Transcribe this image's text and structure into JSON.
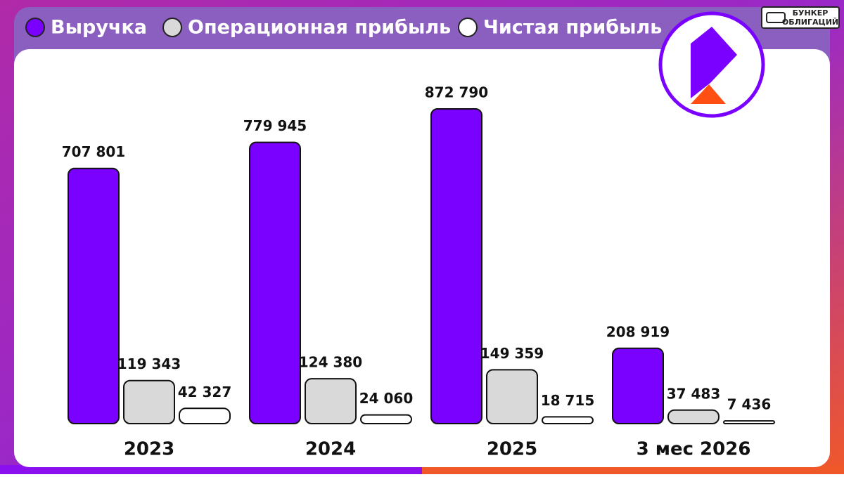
{
  "chart_data": {
    "type": "bar",
    "categories": [
      "2023",
      "2024",
      "2025",
      "3 мес 2026"
    ],
    "series": [
      {
        "name": "Выручка",
        "color": "#7a00ff",
        "values": [
          707801,
          779945,
          872790,
          208919
        ],
        "value_labels": [
          "707 801",
          "779 945",
          "872 790",
          "208 919"
        ]
      },
      {
        "name": "Операционная прибыль",
        "color": "#d9d9d9",
        "values": [
          119343,
          124380,
          149359,
          37483
        ],
        "value_labels": [
          "119 343",
          "124 380",
          "149 359",
          "37 483"
        ]
      },
      {
        "name": "Чистая прибыль",
        "color": "#ffffff",
        "values": [
          42327,
          24060,
          18715,
          7436
        ],
        "value_labels": [
          "42 327",
          "24 060",
          "18 715",
          "7 436"
        ]
      }
    ]
  },
  "badge": {
    "line1": "БУНКЕР",
    "line2": "ОБЛИГАЦИЙ"
  }
}
